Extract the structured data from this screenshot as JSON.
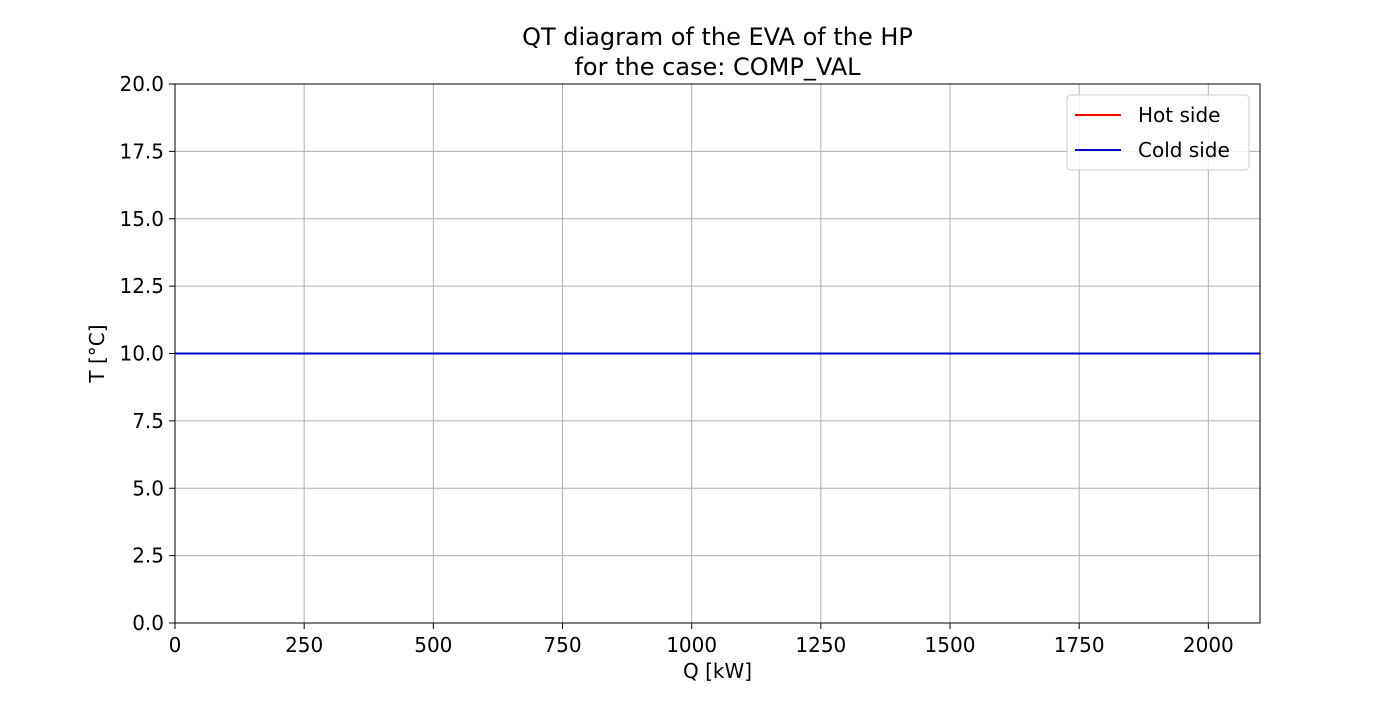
{
  "chart_data": {
    "type": "line",
    "title": [
      "QT diagram of the EVA of the HP",
      "for the case: COMP_VAL"
    ],
    "xlabel": "Q [kW]",
    "ylabel": "T [°C]",
    "xlim": [
      0,
      2100
    ],
    "ylim": [
      0,
      20
    ],
    "xticks": [
      0,
      250,
      500,
      750,
      1000,
      1250,
      1500,
      1750,
      2000
    ],
    "xtick_labels": [
      "0",
      "250",
      "500",
      "750",
      "1000",
      "1250",
      "1500",
      "1750",
      "2000"
    ],
    "yticks": [
      0,
      2.5,
      5,
      7.5,
      10,
      12.5,
      15,
      17.5,
      20
    ],
    "ytick_labels": [
      "0.0",
      "2.5",
      "5.0",
      "7.5",
      "10.0",
      "12.5",
      "15.0",
      "17.5",
      "20.0"
    ],
    "grid": true,
    "legend_position": "top-right",
    "series": [
      {
        "name": "Hot side",
        "color": "#ff0000",
        "x": [
          0,
          2100
        ],
        "y": [
          10.0,
          10.0
        ]
      },
      {
        "name": "Cold side",
        "color": "#0000cc",
        "x": [
          0,
          2100
        ],
        "y": [
          10.0,
          10.0
        ]
      }
    ]
  }
}
